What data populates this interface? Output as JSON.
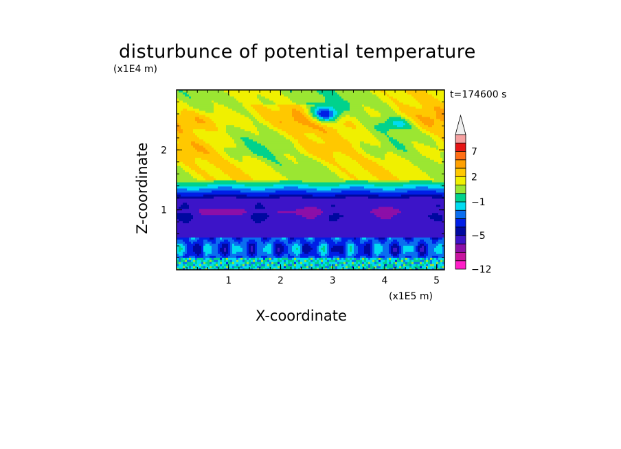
{
  "title": "disturbunce of potential temperature",
  "time_label": "t=174600 s",
  "chart_data": {
    "type": "heatmap",
    "title": "disturbunce of potential temperature",
    "xlabel": "X-coordinate",
    "ylabel": "Z-coordinate",
    "x_unit": "(x1E5 m)",
    "y_unit": "(x1E4 m)",
    "xlim": [
      0,
      5.15
    ],
    "ylim": [
      0,
      3.0
    ],
    "x_ticks": [
      1,
      2,
      3,
      4,
      5
    ],
    "y_ticks": [
      1,
      2
    ],
    "x_tick_labels": [
      "1",
      "2",
      "3",
      "4",
      "5"
    ],
    "y_tick_labels": [
      "1",
      "2"
    ],
    "colorbar": {
      "levels": [
        -12,
        -10,
        -8,
        -6,
        -5,
        -4,
        -3,
        -2,
        -1,
        0,
        1,
        2,
        3,
        5,
        7,
        9,
        11
      ],
      "labels": [
        {
          "value": -12,
          "text": "−12"
        },
        {
          "value": -5,
          "text": "−5"
        },
        {
          "value": -1,
          "text": "−1"
        },
        {
          "value": 2,
          "text": "2"
        },
        {
          "value": 7,
          "text": "7"
        }
      ],
      "colors": [
        "#ff1ec8",
        "#c8149f",
        "#8c0fa8",
        "#3c14c8",
        "#0008a0",
        "#001ee6",
        "#0a6ef0",
        "#00dcf0",
        "#00d28c",
        "#9be632",
        "#f0f000",
        "#ffc800",
        "#ffa000",
        "#ff6e14",
        "#e61414",
        "#f5a0a0"
      ],
      "extend_max_color": "#f0f0f0"
    },
    "bands": [
      {
        "z_range": [
          0.0,
          0.2
        ],
        "value": -1,
        "description": "mixed cyan with green/blue speckles near surface"
      },
      {
        "z_range": [
          0.2,
          0.55
        ],
        "value": -3,
        "description": "light blue with cyan cells"
      },
      {
        "z_range": [
          0.55,
          1.2
        ],
        "value": -5,
        "description": "dark blue layer with purple patches near z=1"
      },
      {
        "z_range": [
          1.2,
          1.5
        ],
        "value": -2,
        "description": "cyan/green transition"
      },
      {
        "z_range": [
          1.5,
          2.6
        ],
        "value": 1.5,
        "description": "yellow and orange wavy layers"
      },
      {
        "z_range": [
          2.6,
          3.0
        ],
        "value": 1,
        "description": "yellow/green with blue anomaly near x=3"
      }
    ]
  }
}
